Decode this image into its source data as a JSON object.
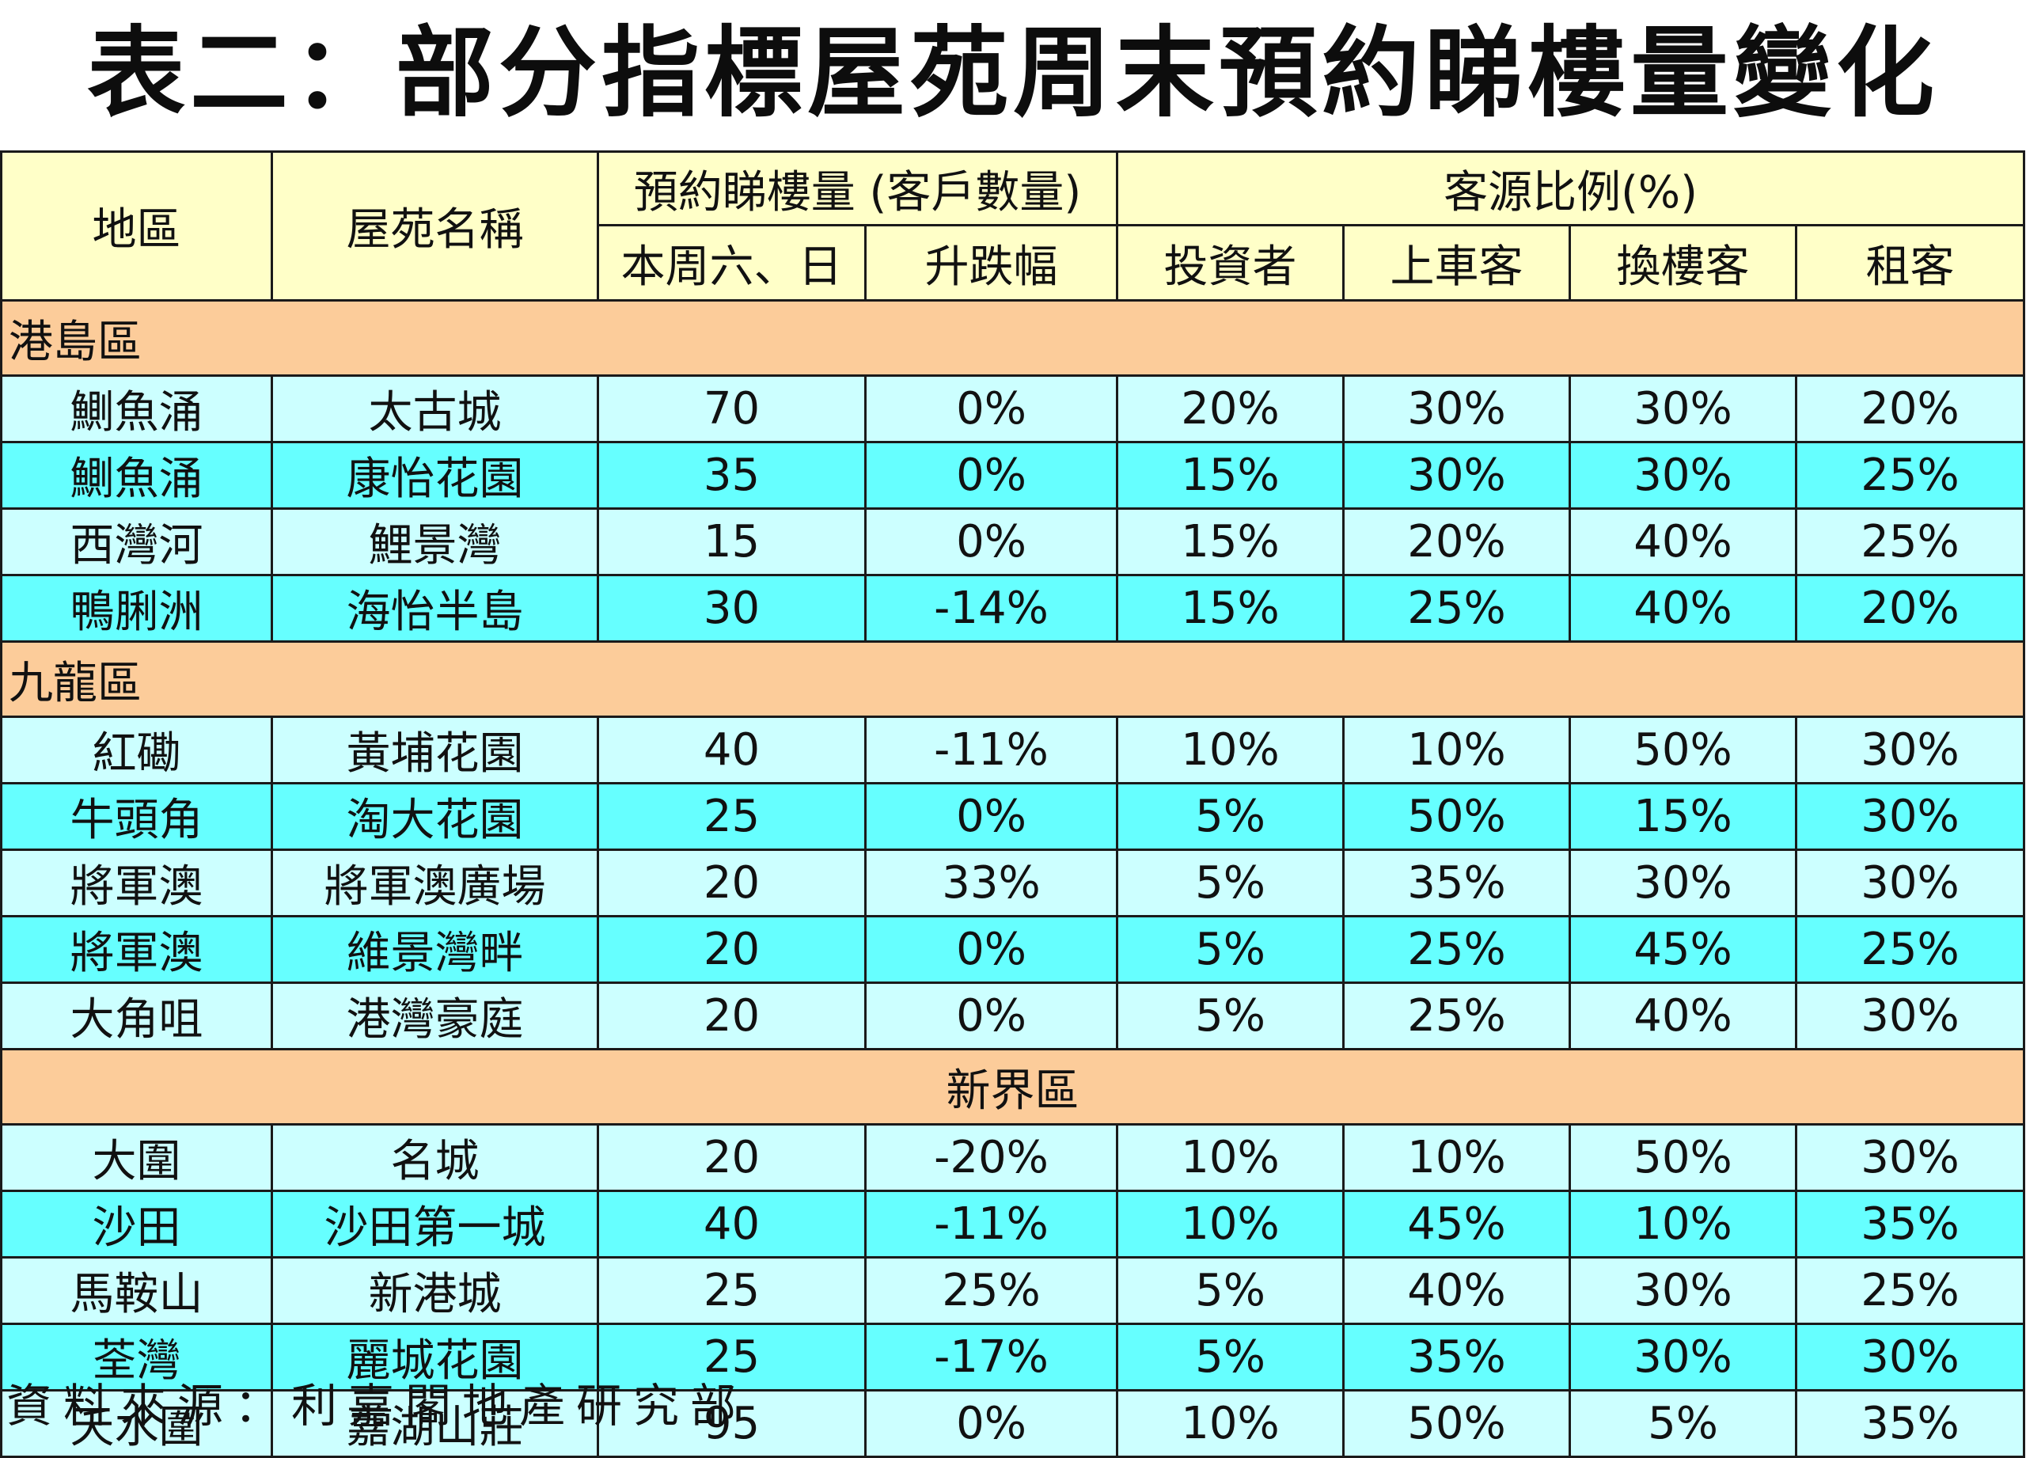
{
  "title": "表二：部分指標屋苑周末預約睇樓量變化",
  "headers": {
    "district": "地區",
    "estate": "屋苑名稱",
    "booking_group": "預約睇樓量 (客戶數量)",
    "ratio_group": "客源比例(%)",
    "weekend": "本周六、日",
    "change": "升跌幅",
    "investor": "投資者",
    "first_buyer": "上車客",
    "upgrader": "換樓客",
    "tenant": "租客"
  },
  "sections": [
    {
      "name": "港島區",
      "align": "left",
      "rows": [
        [
          "鰂魚涌",
          "太古城",
          "70",
          "0%",
          "20%",
          "30%",
          "30%",
          "20%"
        ],
        [
          "鰂魚涌",
          "康怡花園",
          "35",
          "0%",
          "15%",
          "30%",
          "30%",
          "25%"
        ],
        [
          "西灣河",
          "鯉景灣",
          "15",
          "0%",
          "15%",
          "20%",
          "40%",
          "25%"
        ],
        [
          "鴨脷洲",
          "海怡半島",
          "30",
          "-14%",
          "15%",
          "25%",
          "40%",
          "20%"
        ]
      ]
    },
    {
      "name": "九龍區",
      "align": "left",
      "rows": [
        [
          "紅磡",
          "黃埔花園",
          "40",
          "-11%",
          "10%",
          "10%",
          "50%",
          "30%"
        ],
        [
          "牛頭角",
          "淘大花園",
          "25",
          "0%",
          "5%",
          "50%",
          "15%",
          "30%"
        ],
        [
          "將軍澳",
          "將軍澳廣場",
          "20",
          "33%",
          "5%",
          "35%",
          "30%",
          "30%"
        ],
        [
          "將軍澳",
          "維景灣畔",
          "20",
          "0%",
          "5%",
          "25%",
          "45%",
          "25%"
        ],
        [
          "大角咀",
          "港灣豪庭",
          "20",
          "0%",
          "5%",
          "25%",
          "40%",
          "30%"
        ]
      ]
    },
    {
      "name": "新界區",
      "align": "center",
      "rows": [
        [
          "大圍",
          "名城",
          "20",
          "-20%",
          "10%",
          "10%",
          "50%",
          "30%"
        ],
        [
          "沙田",
          "沙田第一城",
          "40",
          "-11%",
          "10%",
          "45%",
          "10%",
          "35%"
        ],
        [
          "馬鞍山",
          "新港城",
          "25",
          "25%",
          "5%",
          "40%",
          "30%",
          "25%"
        ],
        [
          "荃灣",
          "麗城花園",
          "25",
          "-17%",
          "5%",
          "35%",
          "30%",
          "30%"
        ],
        [
          "天水圍",
          "嘉湖山莊",
          "95",
          "0%",
          "10%",
          "50%",
          "5%",
          "35%"
        ]
      ]
    }
  ],
  "source": "資料來源：利嘉閣地產研究部",
  "colors": {
    "header_bg": "#ffffc8",
    "section_bg": "#fccc9a",
    "row_light": "#ccffff",
    "row_dark": "#66ffff"
  }
}
